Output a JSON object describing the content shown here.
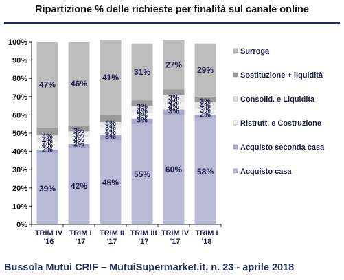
{
  "title": "Ripartizione % delle richieste per finalità sul canale online",
  "source": "Bussola Mutui CRIF – MutuiSupermarket.it, n. 23 - aprile 2018",
  "chart_data": {
    "type": "bar",
    "stacked": true,
    "ylim": [
      0,
      100
    ],
    "yticks": [
      "0%",
      "10%",
      "20%",
      "30%",
      "40%",
      "50%",
      "60%",
      "70%",
      "80%",
      "90%",
      "100%"
    ],
    "categories": [
      [
        "TRIM IV",
        "'16"
      ],
      [
        "TRIM I",
        "'17"
      ],
      [
        "TRIM II",
        "'17"
      ],
      [
        "TRIM III",
        "'17"
      ],
      [
        "TRIM IV",
        "'17"
      ],
      [
        "TRIM I",
        "'18"
      ]
    ],
    "series": [
      {
        "name": "Acquisto casa",
        "color": "#b8bad6",
        "values": [
          39,
          42,
          46,
          55,
          60,
          58
        ],
        "labels": [
          "39%",
          "42%",
          "46%",
          "55%",
          "60%",
          "58%"
        ]
      },
      {
        "name": "Acquisto seconda casa",
        "color": "#a6a8ca",
        "values": [
          2,
          2,
          3,
          3,
          3,
          2
        ],
        "labels": [
          "2%",
          "2%",
          "3%",
          "3%",
          "3%",
          "2%"
        ]
      },
      {
        "name": "Ristrutt. e Costruzione",
        "color": "#f2f2f2",
        "values": [
          4,
          4,
          4,
          3,
          4,
          3
        ],
        "labels": [
          "4%",
          "4%",
          "4%",
          "3%",
          "4%",
          "3%"
        ]
      },
      {
        "name": "Consolid. e Liquidità",
        "color": "#e4e4e4",
        "values": [
          4,
          3,
          3,
          4,
          4,
          4
        ],
        "labels": [
          "4%",
          "3%",
          "3%",
          "4%",
          "4%",
          "4%"
        ]
      },
      {
        "name": "Sostituzione + liquidità",
        "color": "#9a9a9a",
        "values": [
          4,
          3,
          4,
          3,
          3,
          3
        ],
        "labels": [
          "4%",
          "3%",
          "4%",
          "3%",
          "3%",
          "3%"
        ]
      },
      {
        "name": "Surroga",
        "color": "#bdbdbd",
        "values": [
          47,
          46,
          41,
          31,
          27,
          29
        ],
        "labels": [
          "47%",
          "46%",
          "41%",
          "31%",
          "27%",
          "29%"
        ]
      }
    ],
    "legend_order": [
      "Surroga",
      "Sostituzione + liquidità",
      "Consolid. e Liquidità",
      "Ristrutt. e Costruzione",
      "Acquisto seconda casa",
      "Acquisto casa"
    ],
    "legend_position": "right",
    "grid": false
  }
}
